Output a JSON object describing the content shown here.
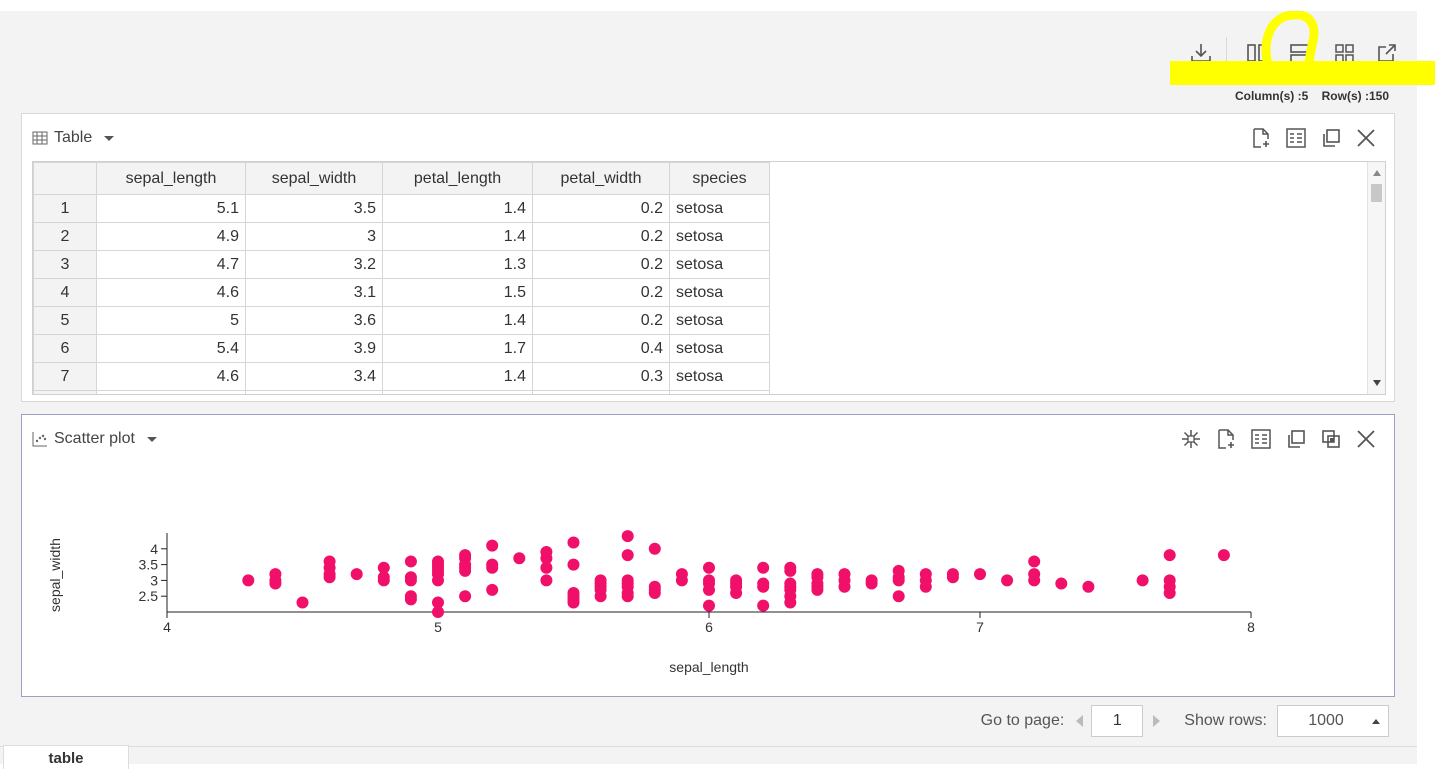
{
  "toolbar": {
    "icons": [
      "download-icon",
      "columns-layout-icon",
      "rows-layout-icon",
      "grid-layout-icon",
      "open-external-icon"
    ],
    "highlight_color": "#ffff00"
  },
  "counts": {
    "columns": "Column(s) :5",
    "rows": "Row(s) :150"
  },
  "table_panel": {
    "title": "Table",
    "columns": [
      "sepal_length",
      "sepal_width",
      "petal_length",
      "petal_width",
      "species"
    ],
    "rows": [
      [
        "1",
        "5.1",
        "3.5",
        "1.4",
        "0.2",
        "setosa"
      ],
      [
        "2",
        "4.9",
        "3",
        "1.4",
        "0.2",
        "setosa"
      ],
      [
        "3",
        "4.7",
        "3.2",
        "1.3",
        "0.2",
        "setosa"
      ],
      [
        "4",
        "4.6",
        "3.1",
        "1.5",
        "0.2",
        "setosa"
      ],
      [
        "5",
        "5",
        "3.6",
        "1.4",
        "0.2",
        "setosa"
      ],
      [
        "6",
        "5.4",
        "3.9",
        "1.7",
        "0.4",
        "setosa"
      ],
      [
        "7",
        "4.6",
        "3.4",
        "1.4",
        "0.3",
        "setosa"
      ]
    ]
  },
  "scatter_panel": {
    "title": "Scatter plot"
  },
  "chart_data": {
    "type": "scatter",
    "title": "",
    "xlabel": "sepal_length",
    "ylabel": "sepal_width",
    "xlim": [
      4,
      8
    ],
    "ylim": [
      2,
      4.5
    ],
    "xticks": [
      "4",
      "5",
      "6",
      "7",
      "8"
    ],
    "yticks": [
      "2.5",
      "3",
      "3.5",
      "4"
    ],
    "grid": false,
    "point_color": "#f0106a",
    "points": [
      [
        4.3,
        3.0
      ],
      [
        4.4,
        2.9
      ],
      [
        4.4,
        3.0
      ],
      [
        4.4,
        3.2
      ],
      [
        4.5,
        2.3
      ],
      [
        4.6,
        3.1
      ],
      [
        4.6,
        3.2
      ],
      [
        4.6,
        3.4
      ],
      [
        4.6,
        3.6
      ],
      [
        4.7,
        3.2
      ],
      [
        4.8,
        3.0
      ],
      [
        4.8,
        3.1
      ],
      [
        4.8,
        3.4
      ],
      [
        4.9,
        2.4
      ],
      [
        4.9,
        2.5
      ],
      [
        4.9,
        3.0
      ],
      [
        4.9,
        3.1
      ],
      [
        4.9,
        3.6
      ],
      [
        5.0,
        2.0
      ],
      [
        5.0,
        2.3
      ],
      [
        5.0,
        3.0
      ],
      [
        5.0,
        3.2
      ],
      [
        5.0,
        3.3
      ],
      [
        5.0,
        3.4
      ],
      [
        5.0,
        3.5
      ],
      [
        5.0,
        3.6
      ],
      [
        5.1,
        2.5
      ],
      [
        5.1,
        3.3
      ],
      [
        5.1,
        3.4
      ],
      [
        5.1,
        3.5
      ],
      [
        5.1,
        3.7
      ],
      [
        5.1,
        3.8
      ],
      [
        5.2,
        2.7
      ],
      [
        5.2,
        3.4
      ],
      [
        5.2,
        3.5
      ],
      [
        5.2,
        4.1
      ],
      [
        5.3,
        3.7
      ],
      [
        5.4,
        3.0
      ],
      [
        5.4,
        3.4
      ],
      [
        5.4,
        3.7
      ],
      [
        5.4,
        3.9
      ],
      [
        5.5,
        2.3
      ],
      [
        5.5,
        2.4
      ],
      [
        5.5,
        2.5
      ],
      [
        5.5,
        2.6
      ],
      [
        5.5,
        3.5
      ],
      [
        5.5,
        4.2
      ],
      [
        5.6,
        2.5
      ],
      [
        5.6,
        2.7
      ],
      [
        5.6,
        2.8
      ],
      [
        5.6,
        2.9
      ],
      [
        5.6,
        3.0
      ],
      [
        5.7,
        2.5
      ],
      [
        5.7,
        2.6
      ],
      [
        5.7,
        2.8
      ],
      [
        5.7,
        2.9
      ],
      [
        5.7,
        3.0
      ],
      [
        5.7,
        3.8
      ],
      [
        5.7,
        4.4
      ],
      [
        5.8,
        2.6
      ],
      [
        5.8,
        2.7
      ],
      [
        5.8,
        2.8
      ],
      [
        5.8,
        4.0
      ],
      [
        5.9,
        3.0
      ],
      [
        5.9,
        3.2
      ],
      [
        6.0,
        2.2
      ],
      [
        6.0,
        2.7
      ],
      [
        6.0,
        2.9
      ],
      [
        6.0,
        3.0
      ],
      [
        6.0,
        3.4
      ],
      [
        6.1,
        2.6
      ],
      [
        6.1,
        2.8
      ],
      [
        6.1,
        2.9
      ],
      [
        6.1,
        3.0
      ],
      [
        6.2,
        2.2
      ],
      [
        6.2,
        2.8
      ],
      [
        6.2,
        2.9
      ],
      [
        6.2,
        3.4
      ],
      [
        6.3,
        2.3
      ],
      [
        6.3,
        2.5
      ],
      [
        6.3,
        2.7
      ],
      [
        6.3,
        2.8
      ],
      [
        6.3,
        2.9
      ],
      [
        6.3,
        3.3
      ],
      [
        6.3,
        3.4
      ],
      [
        6.4,
        2.7
      ],
      [
        6.4,
        2.8
      ],
      [
        6.4,
        2.9
      ],
      [
        6.4,
        3.1
      ],
      [
        6.4,
        3.2
      ],
      [
        6.5,
        2.8
      ],
      [
        6.5,
        3.0
      ],
      [
        6.5,
        3.2
      ],
      [
        6.6,
        2.9
      ],
      [
        6.6,
        3.0
      ],
      [
        6.7,
        2.5
      ],
      [
        6.7,
        3.0
      ],
      [
        6.7,
        3.1
      ],
      [
        6.7,
        3.3
      ],
      [
        6.8,
        2.8
      ],
      [
        6.8,
        3.0
      ],
      [
        6.8,
        3.2
      ],
      [
        6.9,
        3.1
      ],
      [
        6.9,
        3.2
      ],
      [
        7.0,
        3.2
      ],
      [
        7.1,
        3.0
      ],
      [
        7.2,
        3.0
      ],
      [
        7.2,
        3.2
      ],
      [
        7.2,
        3.6
      ],
      [
        7.3,
        2.9
      ],
      [
        7.4,
        2.8
      ],
      [
        7.6,
        3.0
      ],
      [
        7.7,
        2.6
      ],
      [
        7.7,
        2.8
      ],
      [
        7.7,
        3.0
      ],
      [
        7.7,
        3.8
      ],
      [
        7.9,
        3.8
      ]
    ]
  },
  "pager": {
    "go_to_label": "Go to page:",
    "page_value": "1",
    "show_rows_label": "Show rows:",
    "rows_value": "1000"
  },
  "tabs": [
    {
      "label": "table"
    }
  ]
}
